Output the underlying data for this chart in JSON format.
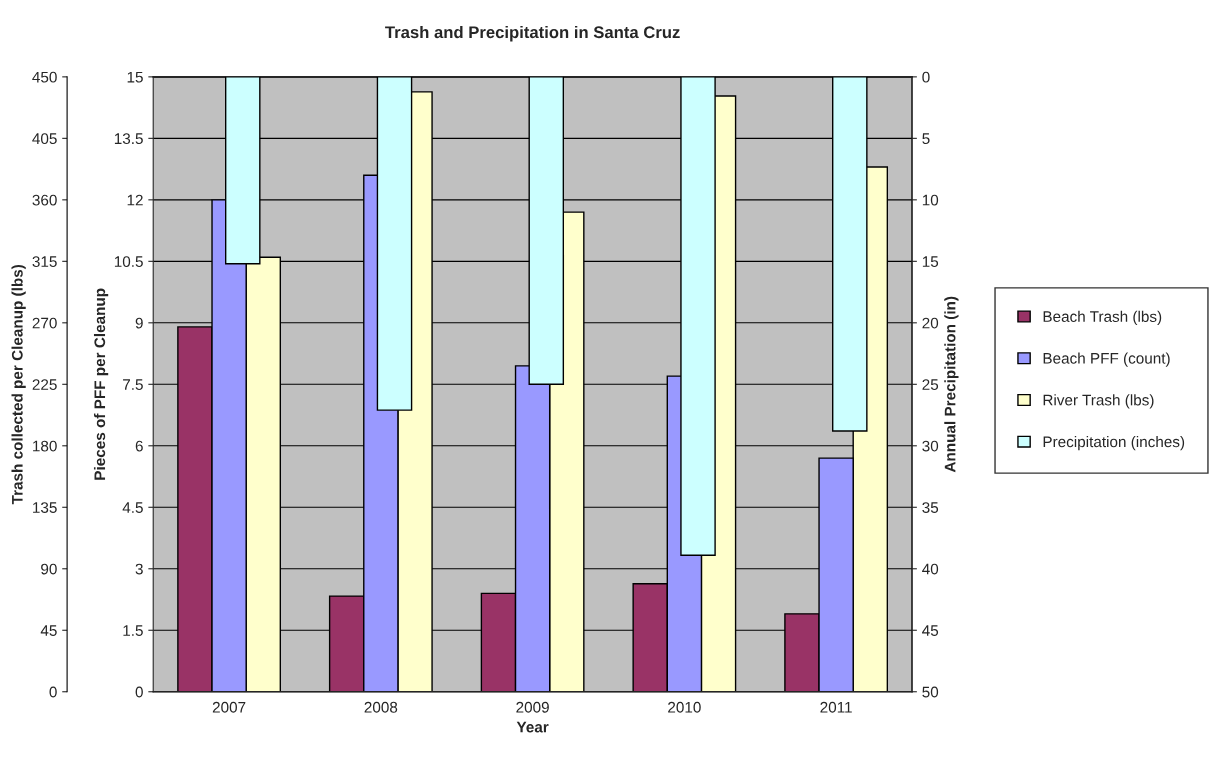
{
  "chart_data": {
    "type": "bar",
    "title": "Trash and Precipitation in Santa Cruz",
    "categories": [
      "2007",
      "2008",
      "2009",
      "2010",
      "2011"
    ],
    "xlabel": "Year",
    "ylabel": "Trash collected per Cleanup (lbs)",
    "y2label": "Pieces of PFF per Cleanup",
    "y3label": "Annual Precipitation (in)",
    "ylim": [
      0,
      450
    ],
    "yticks": [
      0,
      45,
      90,
      135,
      180,
      225,
      270,
      315,
      360,
      405,
      450
    ],
    "y2lim": [
      0,
      15
    ],
    "y2ticks": [
      0,
      1.5,
      3,
      4.5,
      6,
      7.5,
      9,
      10.5,
      12,
      13.5,
      15
    ],
    "y3lim": [
      50,
      0
    ],
    "y3ticks": [
      0,
      5,
      10,
      15,
      20,
      25,
      30,
      35,
      40,
      45,
      50
    ],
    "series": [
      {
        "name": "Beach Trash (lbs)",
        "color": "#993366",
        "values": [
          267,
          70,
          72,
          79,
          57
        ]
      },
      {
        "name": "Beach PFF (count)",
        "color": "#9999ff",
        "axis": "y2",
        "values": [
          12.0,
          12.6,
          7.95,
          7.7,
          5.7
        ]
      },
      {
        "name": "River Trash (lbs)",
        "color": "#ffffcc",
        "values": [
          318,
          439,
          351,
          436,
          384
        ]
      },
      {
        "name": "Precipitation (inches)",
        "color": "#ccffff",
        "axis": "y3",
        "values": [
          15.2,
          27.1,
          25.0,
          38.9,
          28.8
        ]
      }
    ],
    "grid": "y",
    "legend": "right"
  }
}
